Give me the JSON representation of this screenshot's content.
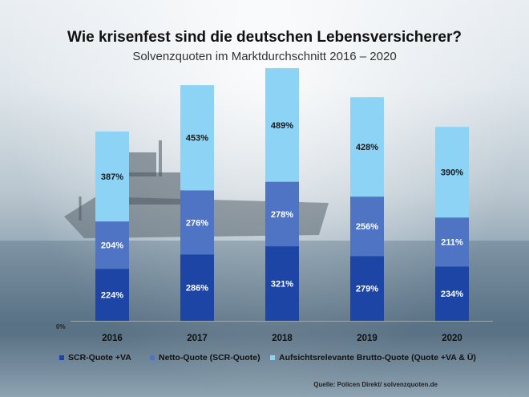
{
  "title": "Wie krisenfest sind die deutschen Lebensversicherer?",
  "subtitle": "Solvenzquoten im Marktdurchschnitt 2016 – 2020",
  "source": "Quelle: Policen Direkt/ solvenzquoten.de",
  "colors": {
    "scr": "#1d45a6",
    "netto": "#4e74c3",
    "brutto": "#8dd3f5"
  },
  "chart_data": {
    "type": "bar",
    "stacked": true,
    "categories": [
      "2016",
      "2017",
      "2018",
      "2019",
      "2020"
    ],
    "series": [
      {
        "name": "SCR-Quote +VA",
        "values": [
          224,
          286,
          321,
          279,
          234
        ],
        "labels": [
          "224%",
          "286%",
          "321%",
          "279%",
          "234%"
        ],
        "color": "#1d45a6"
      },
      {
        "name": "Netto-Quote (SCR-Quote)",
        "values": [
          204,
          276,
          278,
          256,
          211
        ],
        "labels": [
          "204%",
          "276%",
          "278%",
          "256%",
          "211%"
        ],
        "color": "#4e74c3"
      },
      {
        "name": "Aufsichtsrelevante Brutto-Quote (Quote +VA & Ü)",
        "values": [
          387,
          453,
          489,
          428,
          390
        ],
        "labels": [
          "387%",
          "453%",
          "489%",
          "428%",
          "390%"
        ],
        "color": "#8dd3f5"
      }
    ],
    "y_tick_labels": [
      "0%"
    ],
    "legend_position": "bottom",
    "grid": false
  }
}
